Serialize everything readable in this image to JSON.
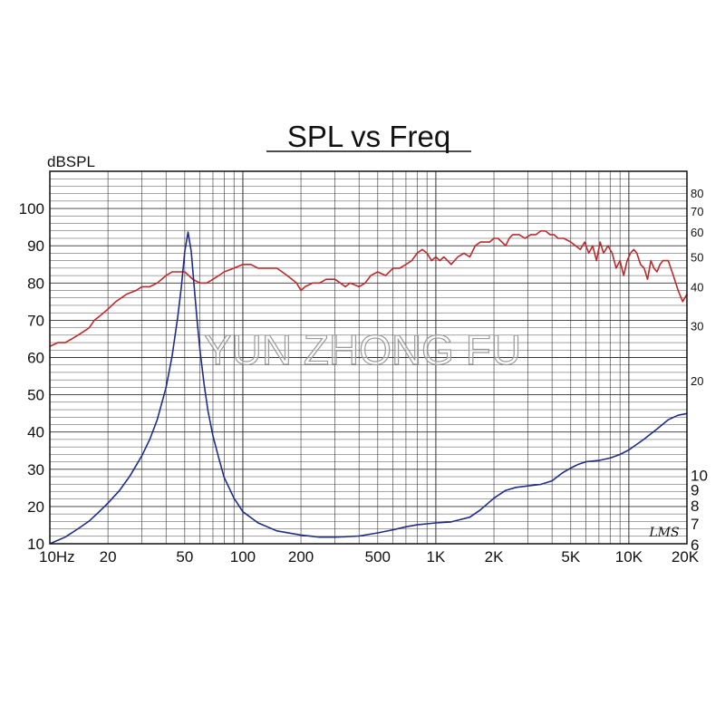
{
  "chart_data": {
    "type": "line",
    "title": "SPL vs Freq",
    "ylabel": "dBSPL",
    "watermark": "YUN ZHONG FU",
    "signature": "LMS",
    "x_scale": "log",
    "xlim": [
      10,
      20000
    ],
    "ylim": [
      10,
      110
    ],
    "y2lim": [
      6,
      94
    ],
    "y2_scale": "log",
    "grid": true,
    "x_ticks": [
      {
        "v": 10,
        "label": "10Hz"
      },
      {
        "v": 20,
        "label": "20"
      },
      {
        "v": 50,
        "label": "50"
      },
      {
        "v": 100,
        "label": "100"
      },
      {
        "v": 200,
        "label": "200"
      },
      {
        "v": 500,
        "label": "500"
      },
      {
        "v": 1000,
        "label": "1K"
      },
      {
        "v": 2000,
        "label": "2K"
      },
      {
        "v": 5000,
        "label": "5K"
      },
      {
        "v": 10000,
        "label": "10K"
      },
      {
        "v": 20000,
        "label": "20K"
      }
    ],
    "y_ticks": [
      {
        "v": 10,
        "label": "10"
      },
      {
        "v": 20,
        "label": "20"
      },
      {
        "v": 30,
        "label": "30"
      },
      {
        "v": 40,
        "label": "40"
      },
      {
        "v": 50,
        "label": "50"
      },
      {
        "v": 60,
        "label": "60"
      },
      {
        "v": 70,
        "label": "70"
      },
      {
        "v": 80,
        "label": "80"
      },
      {
        "v": 90,
        "label": "90"
      },
      {
        "v": 100,
        "label": "100"
      }
    ],
    "y2_ticks": [
      {
        "v": 80,
        "label": "80"
      },
      {
        "v": 70,
        "label": "70"
      },
      {
        "v": 60,
        "label": "60"
      },
      {
        "v": 50,
        "label": "50"
      },
      {
        "v": 40,
        "label": "40"
      },
      {
        "v": 30,
        "label": "30"
      },
      {
        "v": 20,
        "label": "20"
      },
      {
        "v": 10,
        "label": "10"
      },
      {
        "v": 9,
        "label": "9"
      },
      {
        "v": 8,
        "label": "8"
      },
      {
        "v": 7,
        "label": "7"
      },
      {
        "v": 6,
        "label": "6"
      }
    ],
    "series": [
      {
        "color": "#c0282a",
        "axis": "left",
        "x": [
          10,
          11,
          12,
          13,
          14,
          15,
          16,
          17,
          18,
          20,
          22,
          25,
          28,
          30,
          33,
          36,
          40,
          43,
          46,
          50,
          55,
          60,
          65,
          70,
          75,
          80,
          90,
          100,
          110,
          120,
          130,
          140,
          150,
          170,
          190,
          200,
          210,
          230,
          250,
          270,
          300,
          320,
          340,
          360,
          400,
          430,
          460,
          500,
          550,
          600,
          650,
          700,
          750,
          800,
          850,
          900,
          950,
          1000,
          1050,
          1100,
          1150,
          1200,
          1300,
          1400,
          1500,
          1600,
          1700,
          1800,
          1900,
          2000,
          2100,
          2200,
          2300,
          2400,
          2500,
          2700,
          2900,
          3100,
          3300,
          3500,
          3700,
          3900,
          4100,
          4300,
          4600,
          5000,
          5300,
          5600,
          5900,
          6200,
          6500,
          6800,
          7100,
          7400,
          7800,
          8200,
          8600,
          9000,
          9400,
          9800,
          10200,
          10600,
          11000,
          11500,
          12000,
          12500,
          13000,
          13500,
          14000,
          14500,
          15000,
          16000,
          17000,
          18000,
          19000,
          20000
        ],
        "y": [
          63,
          64,
          64,
          65,
          66,
          67,
          68,
          70,
          71,
          73,
          75,
          77,
          78,
          79,
          79,
          80,
          82,
          83,
          83,
          83,
          81,
          80,
          80,
          81,
          82,
          83,
          84,
          85,
          85,
          84,
          84,
          84,
          84,
          82,
          80,
          78,
          79,
          80,
          80,
          81,
          81,
          80,
          79,
          80,
          79,
          80,
          82,
          83,
          82,
          84,
          84,
          85,
          86,
          88,
          89,
          88,
          86,
          87,
          86,
          87,
          86,
          85,
          87,
          88,
          87,
          90,
          91,
          91,
          91,
          92,
          92,
          91,
          90,
          92,
          93,
          93,
          92,
          93,
          93,
          94,
          94,
          93,
          93,
          92,
          92,
          91,
          90,
          89,
          91,
          88,
          90,
          86,
          91,
          88,
          90,
          88,
          84,
          86,
          82,
          86,
          88,
          89,
          88,
          85,
          84,
          81,
          86,
          84,
          83,
          85,
          86,
          86,
          82,
          78,
          75,
          77
        ]
      },
      {
        "color": "#1f2d8a",
        "axis": "right",
        "x": [
          10,
          12,
          14,
          16,
          18,
          20,
          23,
          26,
          30,
          33,
          36,
          40,
          43,
          46,
          48,
          50,
          52,
          54,
          56,
          58,
          60,
          63,
          66,
          70,
          75,
          80,
          90,
          100,
          120,
          150,
          200,
          250,
          300,
          400,
          500,
          600,
          700,
          800,
          900,
          1000,
          1200,
          1500,
          1700,
          2000,
          2300,
          2600,
          3000,
          3500,
          4000,
          4500,
          5000,
          5500,
          6000,
          7000,
          8000,
          9000,
          10000,
          12000,
          14000,
          16000,
          18000,
          20000
        ],
        "y": [
          6.0,
          6.3,
          6.7,
          7.1,
          7.6,
          8.1,
          8.9,
          9.9,
          11.5,
          13.0,
          15.0,
          19.0,
          24.0,
          32.0,
          40.0,
          52.0,
          60.0,
          52.0,
          40.0,
          31.0,
          25.0,
          19.5,
          16.0,
          13.3,
          11.3,
          9.8,
          8.4,
          7.6,
          7.0,
          6.6,
          6.4,
          6.3,
          6.3,
          6.35,
          6.5,
          6.65,
          6.8,
          6.9,
          6.95,
          7.0,
          7.05,
          7.3,
          7.7,
          8.4,
          8.9,
          9.1,
          9.2,
          9.3,
          9.55,
          10.1,
          10.5,
          10.8,
          11.0,
          11.1,
          11.3,
          11.6,
          12.0,
          13.0,
          14.0,
          15.0,
          15.5,
          15.7
        ]
      }
    ]
  }
}
